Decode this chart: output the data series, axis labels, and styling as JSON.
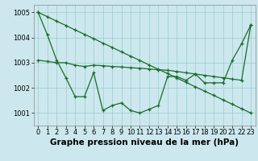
{
  "xlabel": "Graphe pression niveau de la mer (hPa)",
  "bg_color": "#cce8ee",
  "grid_color": "#99cccc",
  "line_color": "#1a6b2a",
  "xlim": [
    -0.5,
    23.5
  ],
  "ylim": [
    1000.5,
    1005.3
  ],
  "yticks": [
    1001,
    1002,
    1003,
    1004,
    1005
  ],
  "xticks": [
    0,
    1,
    2,
    3,
    4,
    5,
    6,
    7,
    8,
    9,
    10,
    11,
    12,
    13,
    14,
    15,
    16,
    17,
    18,
    19,
    20,
    21,
    22,
    23
  ],
  "line_diag": [
    1005.0,
    1004.83,
    1004.65,
    1004.48,
    1004.3,
    1004.13,
    1003.96,
    1003.78,
    1003.61,
    1003.43,
    1003.26,
    1003.09,
    1002.91,
    1002.74,
    1002.57,
    1002.39,
    1002.22,
    1002.04,
    1001.87,
    1001.7,
    1001.52,
    1001.35,
    1001.17,
    1001.0
  ],
  "line_wavy": [
    1005.0,
    1004.1,
    1003.1,
    1002.4,
    1001.65,
    1001.65,
    1002.6,
    1001.1,
    1001.3,
    1001.4,
    1001.1,
    1001.0,
    1001.15,
    1001.3,
    1002.45,
    1002.45,
    1002.3,
    1002.55,
    1002.2,
    1002.2,
    1002.2,
    1003.1,
    1003.75,
    1004.5
  ],
  "line_flat": [
    1003.1,
    1003.05,
    1003.0,
    1003.0,
    1002.9,
    1002.85,
    1002.9,
    1002.88,
    1002.85,
    1002.83,
    1002.8,
    1002.78,
    1002.75,
    1002.72,
    1002.7,
    1002.65,
    1002.6,
    1002.55,
    1002.5,
    1002.45,
    1002.4,
    1002.35,
    1002.3,
    1004.5
  ],
  "xlabel_fontsize": 7.5,
  "tick_fontsize": 6
}
